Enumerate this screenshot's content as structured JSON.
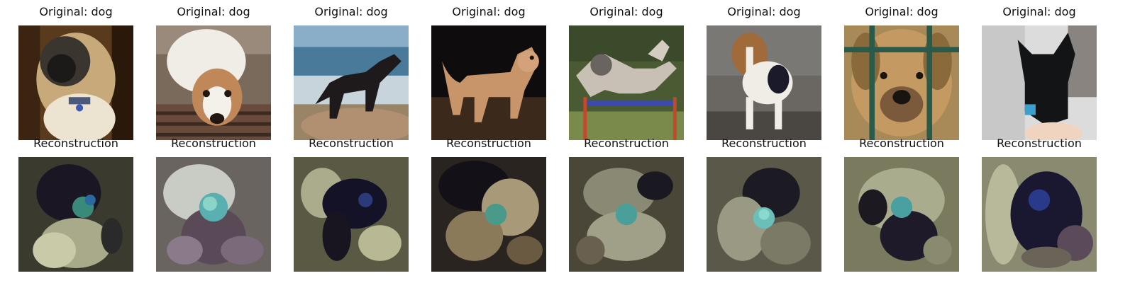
{
  "rows": [
    {
      "kind": "original",
      "titles": [
        "Original: dog",
        "Original: dog",
        "Original: dog",
        "Original: dog",
        "Original: dog",
        "Original: dog",
        "Original: dog",
        "Original: dog"
      ]
    },
    {
      "kind": "reconstruction",
      "titles": [
        "Reconstruction",
        "Reconstruction",
        "Reconstruction",
        "Reconstruction",
        "Reconstruction",
        "Reconstruction",
        "Reconstruction",
        "Reconstruction"
      ]
    }
  ],
  "palette": {
    "background": "#ffffff",
    "text": "#111111"
  }
}
